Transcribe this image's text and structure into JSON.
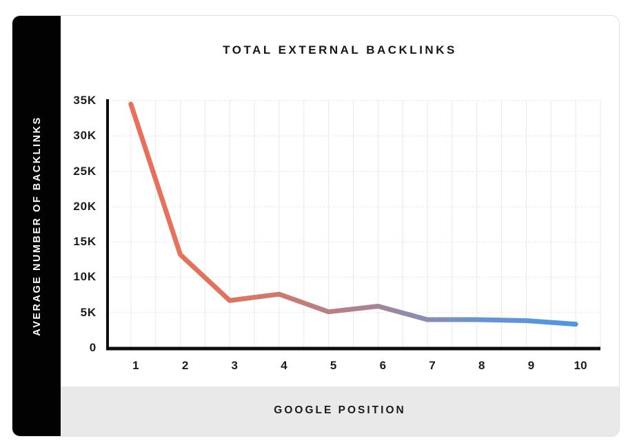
{
  "card": {
    "title": "TOTAL EXTERNAL BACKLINKS",
    "y_axis_title": "AVERAGE NUMBER OF BACKLINKS",
    "x_axis_title": "GOOGLE POSITION"
  },
  "colors": {
    "sidebar_bg": "#020202",
    "sidebar_text": "#ffffff",
    "footer_band_bg": "#e9e9e9",
    "card_border": "#e0e0e0",
    "axis_color": "#0c0c0c",
    "grid_vertical": "#e7e7e7",
    "grid_horizontal": "#e2e2e2",
    "tick_text": "#1b1b1b",
    "line_gradient_stops": [
      {
        "offset": 0,
        "color": "#E9705A"
      },
      {
        "offset": 0.22,
        "color": "#DE745F"
      },
      {
        "offset": 0.38,
        "color": "#C47D76"
      },
      {
        "offset": 0.52,
        "color": "#AB8390"
      },
      {
        "offset": 0.64,
        "color": "#8F8BAF"
      },
      {
        "offset": 0.78,
        "color": "#6A93CE"
      },
      {
        "offset": 1,
        "color": "#4C97E4"
      }
    ]
  },
  "chart_data": {
    "type": "line",
    "title": "TOTAL EXTERNAL BACKLINKS",
    "xlabel": "GOOGLE POSITION",
    "ylabel": "AVERAGE NUMBER OF BACKLINKS",
    "x": [
      1,
      2,
      3,
      4,
      5,
      6,
      7,
      8,
      9,
      10
    ],
    "values": [
      34500,
      13200,
      6700,
      7600,
      5100,
      5900,
      4000,
      4000,
      3850,
      3350
    ],
    "xticks": [
      "1",
      "2",
      "3",
      "4",
      "5",
      "6",
      "7",
      "8",
      "9",
      "10"
    ],
    "yticks": [
      "35K",
      "30K",
      "25K",
      "20K",
      "15K",
      "10K",
      "5K",
      "0"
    ],
    "ytick_values": [
      35000,
      30000,
      25000,
      20000,
      15000,
      10000,
      5000,
      0
    ],
    "xlim": [
      0.5,
      10.5
    ],
    "ylim": [
      0,
      35000
    ],
    "grid": true,
    "grid_x_step": 0.5,
    "legend": false,
    "line_width": 7
  }
}
